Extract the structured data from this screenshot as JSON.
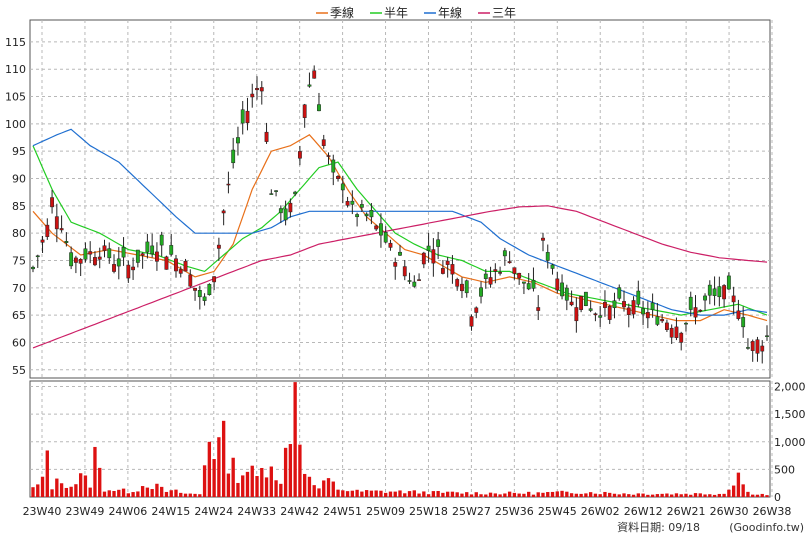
{
  "chart_data": {
    "type": "candlestick",
    "legend": {
      "placement": "top-center",
      "items": [
        {
          "name": "季線",
          "color": "#e8701a"
        },
        {
          "name": "半年",
          "color": "#22cc22"
        },
        {
          "name": "年線",
          "color": "#1f6fd0"
        },
        {
          "name": "三年",
          "color": "#cc1f66"
        }
      ]
    },
    "colors": {
      "up": "#cc1111",
      "down": "#22aa22",
      "wick": "#222222",
      "volume": "#dd1111",
      "grid": "#b8b8b8"
    },
    "x_ticks": [
      "23W40",
      "23W49",
      "24W06",
      "24W15",
      "24W24",
      "24W33",
      "24W42",
      "24W51",
      "25W09",
      "25W18",
      "25W27",
      "25W36",
      "25W45",
      "26W02",
      "26W12",
      "26W21",
      "26W30",
      "26W38"
    ],
    "price_axis": {
      "ticks": [
        55,
        60,
        65,
        70,
        75,
        80,
        85,
        90,
        95,
        100,
        105,
        110,
        115
      ],
      "range": [
        53.5,
        119
      ],
      "side": "left",
      "grid": true
    },
    "volume_axis": {
      "ticks": [
        "0",
        "500",
        "1,000",
        "1,500",
        "2,000"
      ],
      "range": [
        0,
        2100
      ],
      "side": "right"
    },
    "weeks_count": 155,
    "price_anchors": [
      [
        0,
        73.5
      ],
      [
        3,
        81
      ],
      [
        4,
        86
      ],
      [
        6,
        82
      ],
      [
        8,
        75
      ],
      [
        11,
        76
      ],
      [
        14,
        77
      ],
      [
        17,
        75
      ],
      [
        20,
        74
      ],
      [
        23,
        76
      ],
      [
        26,
        78
      ],
      [
        29,
        76
      ],
      [
        32,
        74
      ],
      [
        34,
        70
      ],
      [
        36,
        67
      ],
      [
        38,
        73
      ],
      [
        39,
        78
      ],
      [
        40,
        84
      ],
      [
        42,
        93
      ],
      [
        44,
        100
      ],
      [
        46,
        105
      ],
      [
        48,
        108
      ],
      [
        50,
        88
      ],
      [
        53,
        83
      ],
      [
        55,
        86
      ],
      [
        57,
        104
      ],
      [
        59,
        110
      ],
      [
        61,
        97
      ],
      [
        63,
        90
      ],
      [
        65,
        89
      ],
      [
        67,
        84
      ],
      [
        70,
        83
      ],
      [
        73,
        80
      ],
      [
        75,
        77
      ],
      [
        78,
        74
      ],
      [
        80,
        70
      ],
      [
        82,
        76
      ],
      [
        84,
        78
      ],
      [
        86,
        75
      ],
      [
        88,
        74
      ],
      [
        90,
        72
      ],
      [
        92,
        66
      ],
      [
        94,
        69
      ],
      [
        96,
        72
      ],
      [
        98,
        74
      ],
      [
        100,
        76
      ],
      [
        102,
        72
      ],
      [
        104,
        70
      ],
      [
        106,
        67
      ],
      [
        107,
        78
      ],
      [
        109,
        74
      ],
      [
        111,
        70
      ],
      [
        113,
        67
      ],
      [
        115,
        68
      ],
      [
        118,
        66
      ],
      [
        121,
        66
      ],
      [
        124,
        67
      ],
      [
        127,
        66
      ],
      [
        130,
        65
      ],
      [
        133,
        64
      ],
      [
        136,
        63
      ],
      [
        139,
        66
      ],
      [
        142,
        68
      ],
      [
        145,
        69
      ],
      [
        148,
        67
      ],
      [
        149,
        64
      ],
      [
        150,
        59
      ],
      [
        152,
        60
      ],
      [
        154,
        61
      ]
    ],
    "volume_anchors": [
      [
        0,
        150
      ],
      [
        2,
        280
      ],
      [
        3,
        820
      ],
      [
        4,
        200
      ],
      [
        6,
        310
      ],
      [
        8,
        200
      ],
      [
        10,
        350
      ],
      [
        12,
        250
      ],
      [
        13,
        760
      ],
      [
        15,
        150
      ],
      [
        20,
        100
      ],
      [
        22,
        150
      ],
      [
        24,
        250
      ],
      [
        26,
        180
      ],
      [
        28,
        100
      ],
      [
        30,
        100
      ],
      [
        32,
        60
      ],
      [
        35,
        50
      ],
      [
        37,
        1200
      ],
      [
        38,
        900
      ],
      [
        40,
        1000
      ],
      [
        41,
        700
      ],
      [
        43,
        400
      ],
      [
        45,
        500
      ],
      [
        47,
        350
      ],
      [
        50,
        700
      ],
      [
        52,
        200
      ],
      [
        54,
        1400
      ],
      [
        55,
        2050
      ],
      [
        56,
        1200
      ],
      [
        57,
        600
      ],
      [
        58,
        300
      ],
      [
        60,
        150
      ],
      [
        62,
        300
      ],
      [
        64,
        150
      ],
      [
        68,
        100
      ],
      [
        75,
        100
      ],
      [
        85,
        80
      ],
      [
        95,
        70
      ],
      [
        105,
        70
      ],
      [
        115,
        90
      ],
      [
        125,
        60
      ],
      [
        135,
        60
      ],
      [
        145,
        60
      ],
      [
        148,
        430
      ],
      [
        150,
        80
      ],
      [
        154,
        40
      ]
    ],
    "ma_series": {
      "季線": [
        [
          0,
          84
        ],
        [
          4,
          80
        ],
        [
          10,
          76
        ],
        [
          16,
          77
        ],
        [
          22,
          76
        ],
        [
          28,
          75
        ],
        [
          34,
          72
        ],
        [
          38,
          73
        ],
        [
          42,
          78
        ],
        [
          46,
          88
        ],
        [
          50,
          95
        ],
        [
          54,
          96
        ],
        [
          58,
          98
        ],
        [
          62,
          94
        ],
        [
          66,
          88
        ],
        [
          70,
          83
        ],
        [
          74,
          80
        ],
        [
          78,
          77
        ],
        [
          82,
          76
        ],
        [
          86,
          74
        ],
        [
          90,
          72
        ],
        [
          95,
          71
        ],
        [
          100,
          72
        ],
        [
          105,
          71
        ],
        [
          110,
          69
        ],
        [
          115,
          68
        ],
        [
          120,
          67
        ],
        [
          125,
          66
        ],
        [
          130,
          65
        ],
        [
          135,
          64
        ],
        [
          140,
          64
        ],
        [
          145,
          66
        ],
        [
          150,
          65
        ],
        [
          154,
          64
        ]
      ],
      "半年": [
        [
          0,
          96
        ],
        [
          4,
          88
        ],
        [
          8,
          82
        ],
        [
          14,
          80
        ],
        [
          20,
          77
        ],
        [
          26,
          76
        ],
        [
          32,
          74
        ],
        [
          36,
          73
        ],
        [
          40,
          76
        ],
        [
          44,
          79
        ],
        [
          48,
          81
        ],
        [
          52,
          84
        ],
        [
          56,
          88
        ],
        [
          60,
          92
        ],
        [
          64,
          93
        ],
        [
          68,
          88
        ],
        [
          72,
          84
        ],
        [
          76,
          80
        ],
        [
          80,
          78
        ],
        [
          85,
          76
        ],
        [
          90,
          75
        ],
        [
          95,
          73
        ],
        [
          100,
          73
        ],
        [
          106,
          71
        ],
        [
          112,
          69
        ],
        [
          118,
          68
        ],
        [
          124,
          67
        ],
        [
          130,
          66
        ],
        [
          136,
          65
        ],
        [
          142,
          66
        ],
        [
          148,
          67
        ],
        [
          154,
          65
        ]
      ],
      "年線": [
        [
          0,
          96
        ],
        [
          5,
          98
        ],
        [
          8,
          99
        ],
        [
          12,
          96
        ],
        [
          18,
          93
        ],
        [
          24,
          88
        ],
        [
          30,
          83
        ],
        [
          34,
          80
        ],
        [
          40,
          80
        ],
        [
          46,
          80
        ],
        [
          50,
          81
        ],
        [
          54,
          83
        ],
        [
          58,
          84
        ],
        [
          64,
          84
        ],
        [
          70,
          84
        ],
        [
          76,
          84
        ],
        [
          82,
          84
        ],
        [
          88,
          84
        ],
        [
          94,
          82
        ],
        [
          98,
          79
        ],
        [
          104,
          76
        ],
        [
          110,
          74
        ],
        [
          116,
          72
        ],
        [
          122,
          70
        ],
        [
          128,
          68
        ],
        [
          134,
          66
        ],
        [
          140,
          65
        ],
        [
          145,
          65
        ],
        [
          150,
          66
        ],
        [
          154,
          65.5
        ]
      ],
      "三年": [
        [
          0,
          59
        ],
        [
          6,
          61
        ],
        [
          12,
          63
        ],
        [
          18,
          65
        ],
        [
          24,
          67
        ],
        [
          30,
          69
        ],
        [
          36,
          71
        ],
        [
          42,
          73
        ],
        [
          48,
          75
        ],
        [
          54,
          76
        ],
        [
          60,
          78
        ],
        [
          66,
          79
        ],
        [
          72,
          80
        ],
        [
          78,
          81
        ],
        [
          84,
          82
        ],
        [
          90,
          83
        ],
        [
          96,
          84
        ],
        [
          102,
          84.8
        ],
        [
          108,
          85
        ],
        [
          114,
          84
        ],
        [
          120,
          82
        ],
        [
          126,
          80
        ],
        [
          132,
          78
        ],
        [
          138,
          76.5
        ],
        [
          144,
          75.5
        ],
        [
          150,
          75
        ],
        [
          154,
          74.7
        ]
      ]
    }
  },
  "footer": {
    "date_label": "資料日期: 09/18",
    "source": "(Goodinfo.tw)"
  }
}
